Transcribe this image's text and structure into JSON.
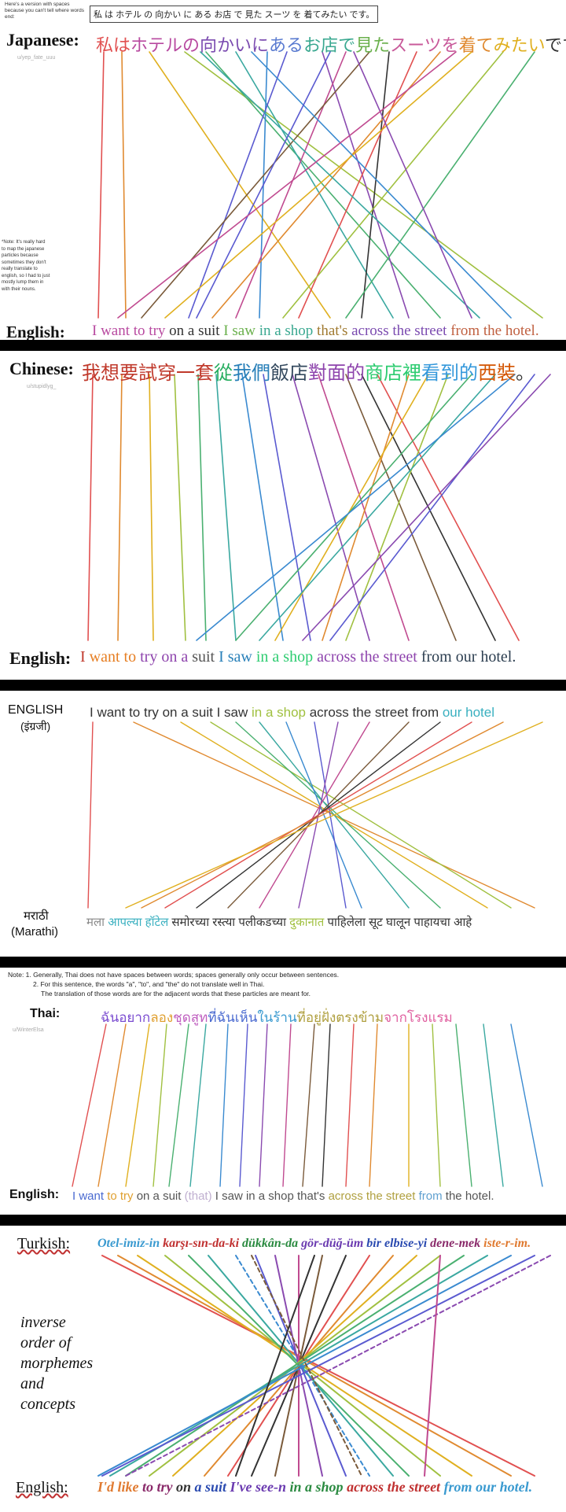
{
  "p1": {
    "note_box": "Here's a version with spaces because you can't tell where words end:",
    "spaced_sentence": "私 は ホテル の 向かい に ある お店 で 見た スーツ を 着てみたい です。",
    "label_top": "Japanese:",
    "label_bottom": "English:",
    "credit": "u/yep_fate_uuu",
    "note": "*Note: It's really hard to map the japanese particles because sometimes they don't really translate to english, so I had to just mostly lump them in with their nouns.",
    "top": [
      {
        "t": "私は",
        "c": "#e15050"
      },
      {
        "t": "ホテルの",
        "c": "#b84aa0"
      },
      {
        "t": "向かいに",
        "c": "#7b4bb0"
      },
      {
        "t": "ある",
        "c": "#5a7bd0"
      },
      {
        "t": "お店で",
        "c": "#3aa890"
      },
      {
        "t": "見た",
        "c": "#6ab04c"
      },
      {
        "t": "スーツを",
        "c": "#c85a9a"
      },
      {
        "t": "着て",
        "c": "#e08a30"
      },
      {
        "t": "みたい",
        "c": "#e0b020"
      },
      {
        "t": "です。",
        "c": "#333333"
      }
    ],
    "bottom": [
      {
        "t": "I want to try",
        "c": "#b84aa0"
      },
      {
        "t": " on a suit ",
        "c": "#333333"
      },
      {
        "t": "I saw",
        "c": "#6ab04c"
      },
      {
        "t": " in a shop ",
        "c": "#3aa890"
      },
      {
        "t": "that's ",
        "c": "#a07a30"
      },
      {
        "t": "across the street ",
        "c": "#7b4bb0"
      },
      {
        "t": "from the hotel.",
        "c": "#c06040"
      }
    ]
  },
  "p2": {
    "label_top": "Chinese:",
    "label_bottom": "English:",
    "credit": "u/stupidlyg_",
    "top": [
      {
        "t": "我想要試穿一套",
        "c": "#c0392b"
      },
      {
        "t": "從",
        "c": "#27ae60"
      },
      {
        "t": "我們",
        "c": "#2980b9"
      },
      {
        "t": "飯店",
        "c": "#34495e"
      },
      {
        "t": "對面的",
        "c": "#8e44ad"
      },
      {
        "t": "商店裡",
        "c": "#2ecc71"
      },
      {
        "t": "看到的",
        "c": "#3498db"
      },
      {
        "t": "西裝",
        "c": "#d35400"
      },
      {
        "t": "。",
        "c": "#333333"
      }
    ],
    "bottom": [
      {
        "t": "I ",
        "c": "#c0392b"
      },
      {
        "t": "want to ",
        "c": "#e67e22"
      },
      {
        "t": "try on a ",
        "c": "#8e44ad"
      },
      {
        "t": "suit ",
        "c": "#555555"
      },
      {
        "t": "I saw ",
        "c": "#2980b9"
      },
      {
        "t": "in a shop ",
        "c": "#2ecc71"
      },
      {
        "t": "across the street ",
        "c": "#8e44ad"
      },
      {
        "t": "from our hotel.",
        "c": "#2c3e50"
      }
    ]
  },
  "p3": {
    "label_top": "ENGLISH",
    "label_top2": "(इंग्रजी)",
    "label_bottom": "मराठी",
    "label_bottom2": "(Marathi)",
    "top": [
      {
        "t": "I want to try on a suit I saw ",
        "c": "#333333"
      },
      {
        "t": "in a shop ",
        "c": "#a0c040"
      },
      {
        "t": "across the street from ",
        "c": "#333333"
      },
      {
        "t": "our hotel",
        "c": "#3ab0c0"
      }
    ],
    "bottom": [
      {
        "t": "मला ",
        "c": "#888888"
      },
      {
        "t": "आपल्या ",
        "c": "#3ab0c0"
      },
      {
        "t": "हॉटेल ",
        "c": "#3ab0c0"
      },
      {
        "t": "समोरच्या ",
        "c": "#333333"
      },
      {
        "t": "रस्त्या ",
        "c": "#333333"
      },
      {
        "t": "पलीकडच्या ",
        "c": "#333333"
      },
      {
        "t": "दुकानात ",
        "c": "#a0c040"
      },
      {
        "t": "पाहिलेला ",
        "c": "#333333"
      },
      {
        "t": "सूट ",
        "c": "#333333"
      },
      {
        "t": "घालून ",
        "c": "#333333"
      },
      {
        "t": "पाहायचा ",
        "c": "#333333"
      },
      {
        "t": "आहे",
        "c": "#333333"
      }
    ]
  },
  "p4": {
    "note1": "Note: 1. Generally, Thai does not have spaces between words; spaces generally only occur between sentences.",
    "note2": "2. For this sentence, the words \"a\", \"to\", and \"the\" do not translate well in Thai.",
    "note3": "The translation of those words are for the adjacent words that these particles are meant for.",
    "label_top": "Thai:",
    "label_bottom": "English:",
    "credit": "u/WinterElsa",
    "top": [
      {
        "t": "ฉันอยาก",
        "c": "#7a4bd0"
      },
      {
        "t": "ลอง",
        "c": "#e0a030"
      },
      {
        "t": "ชุดสูท",
        "c": "#c060c0"
      },
      {
        "t": "ที่ฉันเห็น",
        "c": "#4a6ad0"
      },
      {
        "t": "ในร้าน",
        "c": "#3a9ad0"
      },
      {
        "t": "ที่อยู่ฝั่งตรงข้าม",
        "c": "#b0a040"
      },
      {
        "t": "จากโรงแรม",
        "c": "#e060a0"
      }
    ],
    "bottom": [
      {
        "t": "I want ",
        "c": "#4a6ad0"
      },
      {
        "t": "to try ",
        "c": "#e0a030"
      },
      {
        "t": "on a suit ",
        "c": "#555555"
      },
      {
        "t": "(that) ",
        "c": "#c0b0d0"
      },
      {
        "t": "I saw ",
        "c": "#555555"
      },
      {
        "t": "in a shop ",
        "c": "#555555"
      },
      {
        "t": "that's ",
        "c": "#555555"
      },
      {
        "t": "across the street ",
        "c": "#b0a040"
      },
      {
        "t": "from ",
        "c": "#60a0d0"
      },
      {
        "t": "the hotel.",
        "c": "#555555"
      }
    ]
  },
  "p5": {
    "label_top": "Turkish:",
    "label_bottom": "English:",
    "side_text": "inverse order of morphemes and concepts",
    "top": [
      {
        "t": "Otel-imiz-in ",
        "c": "#3a9ad0"
      },
      {
        "t": "karşı-sın-da-ki ",
        "c": "#c03030"
      },
      {
        "t": "dükkân-da ",
        "c": "#2a8a40"
      },
      {
        "t": "gör-düğ-üm ",
        "c": "#6a3ab0"
      },
      {
        "t": "bir elbise-yi ",
        "c": "#2a4ab0"
      },
      {
        "t": "dene-mek ",
        "c": "#8a2a6a"
      },
      {
        "t": "iste-r-im.",
        "c": "#e07a30"
      }
    ],
    "bottom": [
      {
        "t": "I'd like ",
        "c": "#e07a30"
      },
      {
        "t": "to try ",
        "c": "#8a2a6a"
      },
      {
        "t": "on ",
        "c": "#333333"
      },
      {
        "t": "a suit ",
        "c": "#2a4ab0"
      },
      {
        "t": "I've see-n ",
        "c": "#6a3ab0"
      },
      {
        "t": "in a shop ",
        "c": "#2a8a40"
      },
      {
        "t": "across the street ",
        "c": "#c03030"
      },
      {
        "t": "from our hotel.",
        "c": "#3a9ad0"
      }
    ]
  },
  "colors": {
    "separator": "#000000",
    "palette": [
      "#e15050",
      "#e08a30",
      "#e0b020",
      "#a0c040",
      "#4ab070",
      "#3aa8a0",
      "#3a8ad0",
      "#5a5ad0",
      "#8a4ab0",
      "#c04a90",
      "#7a5a3a",
      "#333333"
    ]
  }
}
